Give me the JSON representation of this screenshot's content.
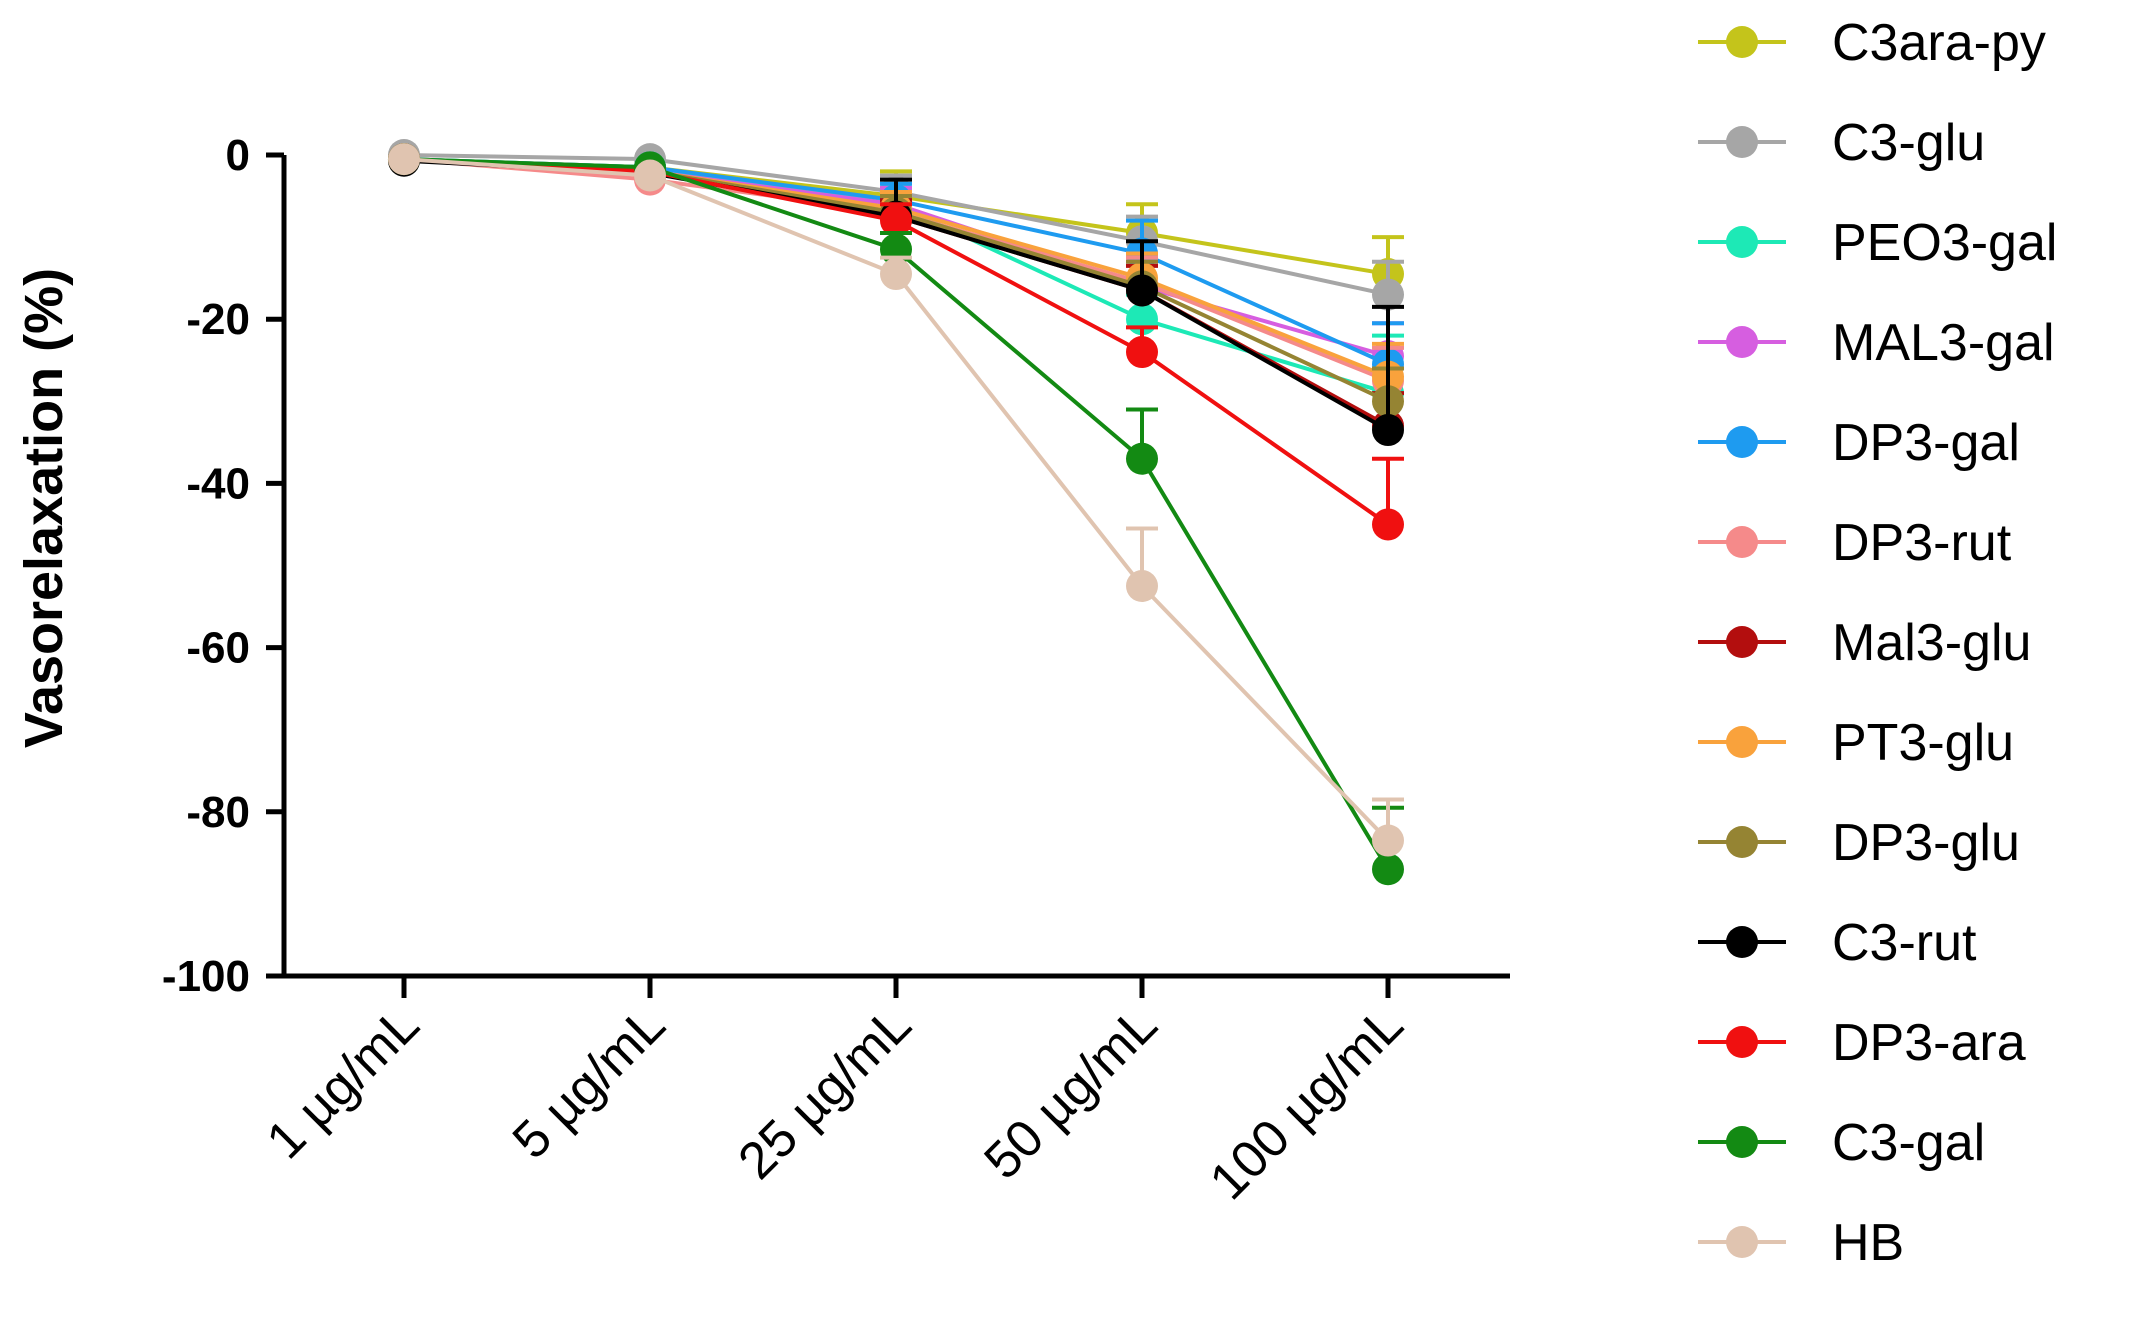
{
  "chart_data": {
    "type": "line",
    "title": "",
    "xlabel": "",
    "ylabel": "Vasorelaxation (%)",
    "ylim": [
      -100,
      0
    ],
    "yticks": [
      0,
      -20,
      -40,
      -60,
      -80,
      -100
    ],
    "ytick_labels": [
      "0",
      "-20",
      "-40",
      "-60",
      "-80",
      "-100"
    ],
    "categories": [
      "1 µg/mL",
      "5 µg/mL",
      "25 µg/mL",
      "50 µg/mL",
      "100 µg/mL"
    ],
    "grid": false,
    "legend_position": "right",
    "series": [
      {
        "name": "C3ara-py",
        "color": "#c4c41b",
        "values": [
          -0.5,
          -1.5,
          -5,
          -9.5,
          -14.5
        ],
        "errors": [
          0,
          0,
          3,
          3.5,
          4.5
        ]
      },
      {
        "name": "C3-glu",
        "color": "#a6a6a6",
        "values": [
          0,
          -0.5,
          -4.5,
          -10.5,
          -17
        ],
        "errors": [
          0,
          0,
          2,
          3,
          4
        ]
      },
      {
        "name": "PEO3-gal",
        "color": "#1de9b6",
        "values": [
          -0.5,
          -1.5,
          -6,
          -20,
          -29
        ],
        "errors": [
          0,
          0,
          2,
          3,
          7
        ]
      },
      {
        "name": "MAL3-gal",
        "color": "#d65ee0",
        "values": [
          -0.5,
          -2,
          -6,
          -16,
          -24.5
        ],
        "errors": [
          0,
          0,
          2,
          3,
          4
        ]
      },
      {
        "name": "DP3-gal",
        "color": "#1e9bf0",
        "values": [
          -0.5,
          -1.5,
          -5.5,
          -12,
          -25.5
        ],
        "errors": [
          0,
          0,
          2,
          4,
          5
        ]
      },
      {
        "name": "DP3-rut",
        "color": "#f58a8a",
        "values": [
          -0.5,
          -3,
          -7,
          -15.5,
          -27.5
        ],
        "errors": [
          0,
          0,
          2,
          3,
          4
        ]
      },
      {
        "name": "Mal3-glu",
        "color": "#b30e0e",
        "values": [
          -0.5,
          -2,
          -7.5,
          -16.5,
          -33
        ],
        "errors": [
          0,
          0,
          2,
          3,
          4
        ]
      },
      {
        "name": "PT3-glu",
        "color": "#f9a23c",
        "values": [
          -0.5,
          -2,
          -6.5,
          -15,
          -27
        ],
        "errors": [
          0,
          0,
          2,
          3,
          4
        ]
      },
      {
        "name": "DP3-glu",
        "color": "#958433",
        "values": [
          -0.5,
          -2,
          -7,
          -16,
          -30
        ],
        "errors": [
          0,
          0,
          2,
          3,
          4
        ]
      },
      {
        "name": "C3-rut",
        "color": "#000000",
        "values": [
          -0.7,
          -2.2,
          -7.5,
          -16.5,
          -33.5
        ],
        "errors": [
          0,
          0,
          4.5,
          6,
          15
        ]
      },
      {
        "name": "DP3-ara",
        "color": "#f01010",
        "values": [
          -0.5,
          -2,
          -8,
          -24,
          -45
        ],
        "errors": [
          0,
          0,
          2,
          3,
          8
        ]
      },
      {
        "name": "C3-gal",
        "color": "#138a13",
        "values": [
          -0.5,
          -1.5,
          -11.5,
          -37,
          -87
        ],
        "errors": [
          0,
          0,
          2,
          6,
          7.5
        ]
      },
      {
        "name": "HB",
        "color": "#e0c4b0",
        "values": [
          -0.5,
          -2.5,
          -14.5,
          -52.5,
          -83.5
        ],
        "errors": [
          0,
          0,
          2,
          7,
          5
        ]
      }
    ]
  }
}
